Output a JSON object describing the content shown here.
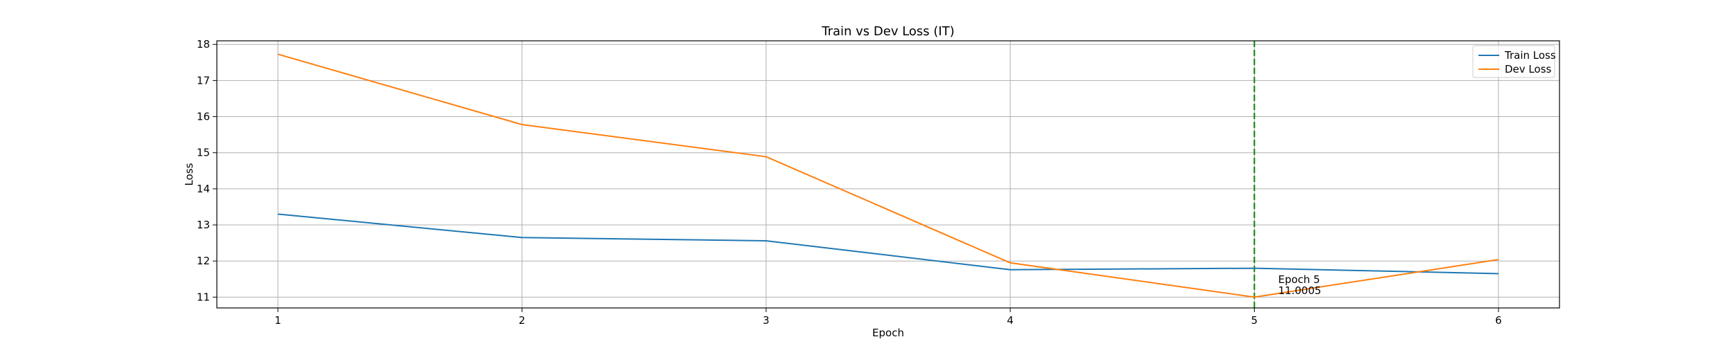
{
  "chart_data": {
    "type": "line",
    "title": "Train vs Dev Loss (IT)",
    "xlabel": "Epoch",
    "ylabel": "Loss",
    "x": [
      1,
      2,
      3,
      4,
      5,
      6
    ],
    "xlim": [
      0.75,
      6.25
    ],
    "ylim": [
      10.7,
      18.1
    ],
    "xticks": [
      1,
      2,
      3,
      4,
      5,
      6
    ],
    "yticks": [
      11,
      12,
      13,
      14,
      15,
      16,
      17,
      18
    ],
    "grid": true,
    "legend_position": "top-right",
    "series": [
      {
        "name": "Train Loss",
        "color": "#1f77b4",
        "values": [
          13.3,
          12.65,
          12.56,
          11.76,
          11.8,
          11.65
        ]
      },
      {
        "name": "Dev Loss",
        "color": "#ff7f0e",
        "values": [
          17.73,
          15.78,
          14.89,
          11.95,
          11.0005,
          12.04
        ]
      }
    ],
    "vline": {
      "x": 5,
      "color": "#008000",
      "style": "dashed"
    },
    "annotation": {
      "x": 5,
      "y": 11.0005,
      "line1": "Epoch 5",
      "line2": "11.0005"
    }
  }
}
